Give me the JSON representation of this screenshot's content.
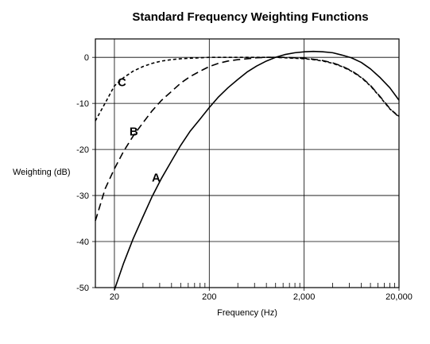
{
  "chart_data": {
    "type": "line",
    "title": "Standard Frequency Weighting Functions",
    "xlabel": "Frequency (Hz)",
    "ylabel": "Weighting (dB)",
    "x_scale": "log",
    "xlim": [
      12.6,
      20000
    ],
    "ylim": [
      -50,
      4
    ],
    "x_ticks": [
      {
        "value": 20,
        "label": "20"
      },
      {
        "value": 200,
        "label": "200"
      },
      {
        "value": 2000,
        "label": "2,000"
      },
      {
        "value": 20000,
        "label": "20,000"
      }
    ],
    "y_ticks": [
      {
        "value": 0,
        "label": "0"
      },
      {
        "value": -10,
        "label": "-10"
      },
      {
        "value": -20,
        "label": "-20"
      },
      {
        "value": -30,
        "label": "-30"
      },
      {
        "value": -40,
        "label": "-40"
      },
      {
        "value": -50,
        "label": "-50"
      }
    ],
    "grid": true,
    "legend": "none",
    "series": [
      {
        "name": "A",
        "line_style": "solid",
        "label_at": {
          "x": 55,
          "y": -27
        },
        "points": [
          {
            "x": 20,
            "y": -50.5
          },
          {
            "x": 25,
            "y": -44.7
          },
          {
            "x": 31.5,
            "y": -39.4
          },
          {
            "x": 40,
            "y": -34.6
          },
          {
            "x": 50,
            "y": -30.2
          },
          {
            "x": 63,
            "y": -26.2
          },
          {
            "x": 80,
            "y": -22.5
          },
          {
            "x": 100,
            "y": -19.1
          },
          {
            "x": 125,
            "y": -16.1
          },
          {
            "x": 160,
            "y": -13.4
          },
          {
            "x": 200,
            "y": -10.9
          },
          {
            "x": 250,
            "y": -8.6
          },
          {
            "x": 315,
            "y": -6.6
          },
          {
            "x": 400,
            "y": -4.8
          },
          {
            "x": 500,
            "y": -3.2
          },
          {
            "x": 630,
            "y": -1.9
          },
          {
            "x": 800,
            "y": -0.8
          },
          {
            "x": 1000,
            "y": 0
          },
          {
            "x": 1250,
            "y": 0.6
          },
          {
            "x": 1600,
            "y": 1.0
          },
          {
            "x": 2000,
            "y": 1.2
          },
          {
            "x": 2500,
            "y": 1.3
          },
          {
            "x": 3150,
            "y": 1.2
          },
          {
            "x": 4000,
            "y": 1.0
          },
          {
            "x": 5000,
            "y": 0.5
          },
          {
            "x": 6300,
            "y": -0.1
          },
          {
            "x": 8000,
            "y": -1.1
          },
          {
            "x": 10000,
            "y": -2.5
          },
          {
            "x": 12500,
            "y": -4.3
          },
          {
            "x": 16000,
            "y": -6.6
          },
          {
            "x": 20000,
            "y": -9.3
          }
        ]
      },
      {
        "name": "B",
        "line_style": "dashed",
        "label_at": {
          "x": 32,
          "y": -17
        },
        "points": [
          {
            "x": 12.6,
            "y": -35.5
          },
          {
            "x": 16,
            "y": -28.5
          },
          {
            "x": 20,
            "y": -24.2
          },
          {
            "x": 25,
            "y": -20.4
          },
          {
            "x": 31.5,
            "y": -17.1
          },
          {
            "x": 40,
            "y": -14.2
          },
          {
            "x": 50,
            "y": -11.6
          },
          {
            "x": 63,
            "y": -9.3
          },
          {
            "x": 80,
            "y": -7.4
          },
          {
            "x": 100,
            "y": -5.6
          },
          {
            "x": 125,
            "y": -4.2
          },
          {
            "x": 160,
            "y": -3.0
          },
          {
            "x": 200,
            "y": -2.0
          },
          {
            "x": 250,
            "y": -1.3
          },
          {
            "x": 315,
            "y": -0.8
          },
          {
            "x": 400,
            "y": -0.5
          },
          {
            "x": 500,
            "y": -0.3
          },
          {
            "x": 630,
            "y": -0.1
          },
          {
            "x": 800,
            "y": 0
          },
          {
            "x": 1000,
            "y": 0
          },
          {
            "x": 1250,
            "y": 0
          },
          {
            "x": 1600,
            "y": -0.1
          },
          {
            "x": 2000,
            "y": -0.2
          },
          {
            "x": 2500,
            "y": -0.4
          },
          {
            "x": 3150,
            "y": -0.7
          },
          {
            "x": 4000,
            "y": -1.2
          },
          {
            "x": 5000,
            "y": -1.9
          },
          {
            "x": 6300,
            "y": -2.9
          },
          {
            "x": 8000,
            "y": -4.3
          },
          {
            "x": 10000,
            "y": -6.1
          },
          {
            "x": 12500,
            "y": -8.4
          },
          {
            "x": 16000,
            "y": -11.1
          },
          {
            "x": 20000,
            "y": -13.0
          }
        ]
      },
      {
        "name": "C",
        "line_style": "dotted",
        "label_at": {
          "x": 24,
          "y": -6.3
        },
        "points": [
          {
            "x": 12.6,
            "y": -13.8
          },
          {
            "x": 16,
            "y": -9.9
          },
          {
            "x": 20,
            "y": -6.2
          },
          {
            "x": 25,
            "y": -4.4
          },
          {
            "x": 31.5,
            "y": -3.0
          },
          {
            "x": 40,
            "y": -2.0
          },
          {
            "x": 50,
            "y": -1.3
          },
          {
            "x": 63,
            "y": -0.8
          },
          {
            "x": 80,
            "y": -0.5
          },
          {
            "x": 100,
            "y": -0.3
          },
          {
            "x": 125,
            "y": -0.2
          },
          {
            "x": 160,
            "y": -0.1
          },
          {
            "x": 200,
            "y": 0
          },
          {
            "x": 315,
            "y": 0
          },
          {
            "x": 500,
            "y": 0
          },
          {
            "x": 800,
            "y": 0
          },
          {
            "x": 1000,
            "y": 0
          },
          {
            "x": 1250,
            "y": -0.1
          },
          {
            "x": 1600,
            "y": -0.2
          },
          {
            "x": 2000,
            "y": -0.3
          },
          {
            "x": 2500,
            "y": -0.5
          },
          {
            "x": 3150,
            "y": -0.8
          },
          {
            "x": 4000,
            "y": -1.3
          },
          {
            "x": 5000,
            "y": -2.0
          },
          {
            "x": 6300,
            "y": -3.0
          },
          {
            "x": 8000,
            "y": -4.4
          },
          {
            "x": 10000,
            "y": -6.2
          },
          {
            "x": 12500,
            "y": -8.5
          },
          {
            "x": 16000,
            "y": -11.2
          },
          {
            "x": 20000,
            "y": -12.8
          }
        ]
      }
    ]
  }
}
